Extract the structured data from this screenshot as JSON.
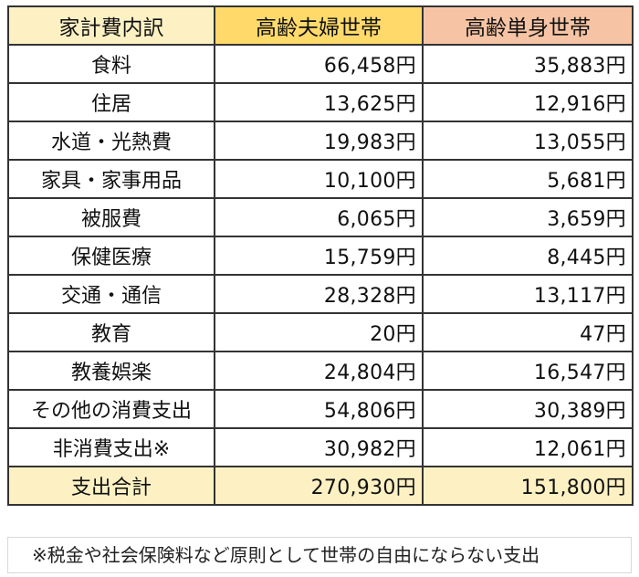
{
  "table": {
    "headers": {
      "category": "家計費内訳",
      "couple": "高齢夫婦世帯",
      "single": "高齢単身世帯"
    },
    "rows": [
      {
        "category": "食料",
        "couple": "66,458円",
        "single": "35,883円"
      },
      {
        "category": "住居",
        "couple": "13,625円",
        "single": "12,916円"
      },
      {
        "category": "水道・光熱費",
        "couple": "19,983円",
        "single": "13,055円"
      },
      {
        "category": "家具・家事用品",
        "couple": "10,100円",
        "single": "5,681円"
      },
      {
        "category": "被服費",
        "couple": "6,065円",
        "single": "3,659円"
      },
      {
        "category": "保健医療",
        "couple": "15,759円",
        "single": "8,445円"
      },
      {
        "category": "交通・通信",
        "couple": "28,328円",
        "single": "13,117円"
      },
      {
        "category": "教育",
        "couple": "20円",
        "single": "47円"
      },
      {
        "category": "教養娯楽",
        "couple": "24,804円",
        "single": "16,547円"
      },
      {
        "category": "その他の消費支出",
        "couple": "54,806円",
        "single": "30,389円"
      },
      {
        "category": "非消費支出※",
        "couple": "30,982円",
        "single": "12,061円"
      }
    ],
    "total": {
      "category": "支出合計",
      "couple": "270,930円",
      "single": "151,800円"
    }
  },
  "footnote": "※税金や社会保険料など原則として世帯の自由にならない支出",
  "colors": {
    "header_category_bg": "#fdf1c3",
    "header_couple_bg": "#ffda6b",
    "header_single_bg": "#f6c4a4",
    "total_bg": "#fdf1c3",
    "border": "#333333"
  }
}
